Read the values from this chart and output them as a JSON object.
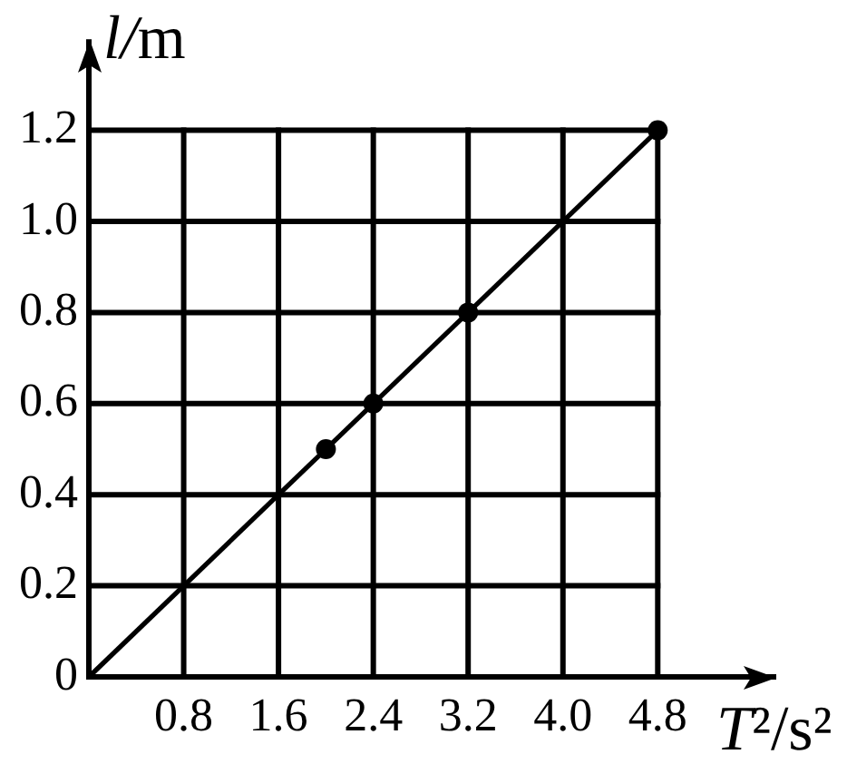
{
  "chart_data": {
    "type": "scatter",
    "xlabel": "T²/s²",
    "ylabel": "l/m",
    "xlim": [
      0,
      5.8
    ],
    "ylim": [
      0,
      1.4
    ],
    "xticks": [
      0.8,
      1.6,
      2.4,
      3.2,
      {
        "value": 4,
        "label": "4.0"
      },
      4.8
    ],
    "yticks": [
      0,
      0.2,
      0.4,
      0.6,
      0.8,
      {
        "value": 1,
        "label": "1.0"
      },
      1.2
    ],
    "grid": true,
    "series": [
      {
        "type": "scatter",
        "x": [
          2.0,
          2.4,
          3.2,
          4.8
        ],
        "values": [
          0.5,
          0.6,
          0.8,
          1.2
        ],
        "color": "#000000",
        "marker": "circle"
      },
      {
        "type": "line",
        "x": [
          0,
          4.8
        ],
        "values": [
          0,
          1.2
        ],
        "color": "#000000",
        "marker": "none",
        "line_style": "solid"
      }
    ]
  }
}
